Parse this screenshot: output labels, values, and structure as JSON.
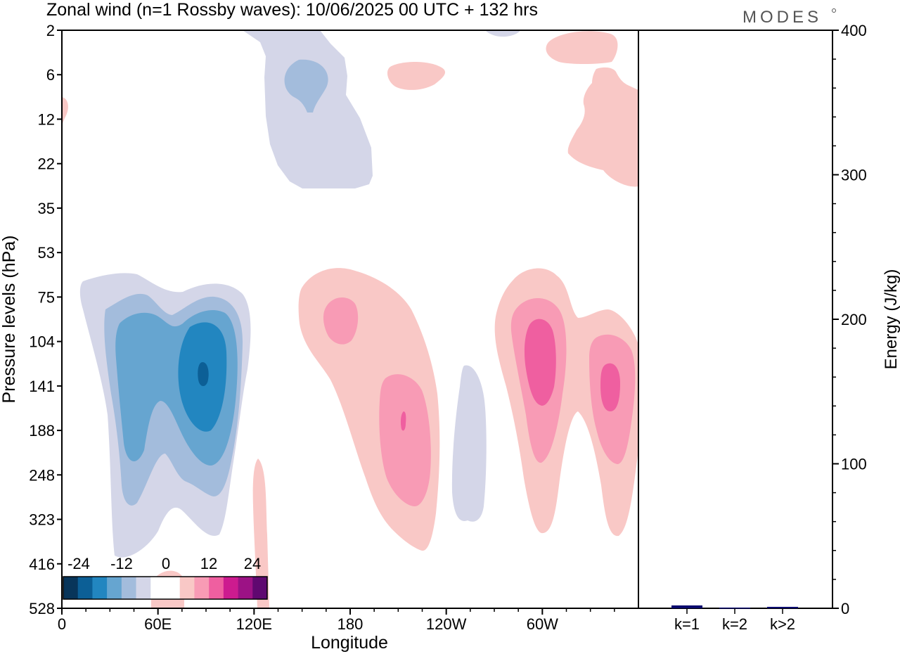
{
  "title": "Zonal wind (n=1 Rossby waves):  10/06/2025  00 UTC  + 132 hrs",
  "logo_text": "MODES",
  "chart_data": [
    {
      "type": "heatmap",
      "title": "Zonal wind (n=1 Rossby waves):  10/06/2025  00 UTC  + 132 hrs",
      "xlabel": "Longitude",
      "ylabel": "Pressure levels (hPa)",
      "x_ticks": [
        "0",
        "60E",
        "120E",
        "180",
        "120W",
        "60W"
      ],
      "x_tick_values": [
        0,
        60,
        120,
        180,
        240,
        300
      ],
      "xlim": [
        0,
        360
      ],
      "y_ticks": [
        "2",
        "6",
        "12",
        "22",
        "35",
        "53",
        "75",
        "104",
        "141",
        "188",
        "248",
        "323",
        "416",
        "528"
      ],
      "colorbar": {
        "tick_labels": [
          "-24",
          "-12",
          "0",
          "12",
          "24"
        ],
        "levels": [
          -30,
          -25,
          -20,
          -15,
          -10,
          -5,
          0,
          5,
          10,
          15,
          20,
          25,
          30
        ],
        "colors": [
          "#08355a",
          "#0c5f96",
          "#2286c0",
          "#66a5d0",
          "#a3bcdc",
          "#d4d6e8",
          "#ffffff",
          "#ffffff",
          "#f9c8c6",
          "#f89bb5",
          "#ef5fa0",
          "#cd1b8f",
          "#9c1285",
          "#600870"
        ]
      },
      "features": [
        {
          "name": "negative anomaly 30E-100E",
          "center_lon": 60,
          "center_level_hPa": 141,
          "min_value": -27
        },
        {
          "name": "negative anomaly stratosphere 150E",
          "center_lon": 150,
          "center_level_hPa": 6,
          "min_value": -12
        },
        {
          "name": "negative anomaly 130W",
          "center_lon": 230,
          "center_level_hPa": 188,
          "min_value": -6
        },
        {
          "name": "positive anomaly 200",
          "center_lon": 200,
          "center_level_hPa": 188,
          "max_value": 20
        },
        {
          "name": "positive anomaly 60W",
          "center_lon": 300,
          "center_level_hPa": 104,
          "max_value": 18
        },
        {
          "name": "positive anomaly 20W",
          "center_lon": 340,
          "center_level_hPa": 141,
          "max_value": 18
        }
      ]
    },
    {
      "type": "bar",
      "ylabel": "Energy (J/kg)",
      "categories": [
        "k=1",
        "k=2",
        "k>2"
      ],
      "values": [
        2,
        0.5,
        1
      ],
      "ylim": [
        0,
        400
      ],
      "y_ticks": [
        "0",
        "100",
        "200",
        "300",
        "400"
      ],
      "color": "#0a0a6e"
    }
  ]
}
